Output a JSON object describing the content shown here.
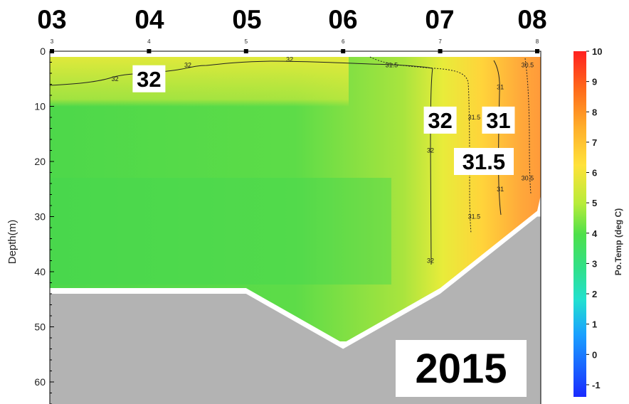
{
  "chart_data": {
    "type": "heatmap",
    "year_label": "2015",
    "station_labels": [
      "03",
      "04",
      "05",
      "06",
      "07",
      "08"
    ],
    "station_ticks": [
      "3",
      "4",
      "5",
      "6",
      "7",
      "8"
    ],
    "ylabel": "Depth(m)",
    "ylim": [
      65,
      0
    ],
    "yticks": [
      0,
      10,
      20,
      30,
      40,
      50,
      60
    ],
    "colorbar": {
      "label": "Po.Temp (deg C)",
      "range": [
        -1.4,
        10
      ],
      "ticks": [
        10,
        9,
        8,
        7,
        6,
        5,
        4,
        3,
        2,
        1,
        0,
        -1
      ]
    },
    "bottom_depth_m": [
      44,
      44,
      44,
      54,
      44,
      30
    ],
    "contour_labels": [
      {
        "text": "32",
        "station": 4,
        "depth_m": 5,
        "size": "large"
      },
      {
        "text": "32",
        "station": 7,
        "depth_m": 12.5,
        "size": "large"
      },
      {
        "text": "31",
        "station": 7.6,
        "depth_m": 12.5,
        "size": "large"
      },
      {
        "text": "31.5",
        "station": 7.45,
        "depth_m": 20,
        "size": "large"
      },
      {
        "text": "32",
        "station": 3.65,
        "depth_m": 5,
        "size": "small"
      },
      {
        "text": "32",
        "station": 4.4,
        "depth_m": 2.5,
        "size": "small"
      },
      {
        "text": "32",
        "station": 5.45,
        "depth_m": 1.5,
        "size": "small"
      },
      {
        "text": "31.5",
        "station": 6.5,
        "depth_m": 2.5,
        "size": "small"
      },
      {
        "text": "31.5",
        "station": 7.35,
        "depth_m": 12,
        "size": "small"
      },
      {
        "text": "31.5",
        "station": 7.35,
        "depth_m": 30,
        "size": "small"
      },
      {
        "text": "31",
        "station": 7.62,
        "depth_m": 6.5,
        "size": "small"
      },
      {
        "text": "31",
        "station": 7.62,
        "depth_m": 25,
        "size": "small"
      },
      {
        "text": "30.5",
        "station": 7.9,
        "depth_m": 2.5,
        "size": "small"
      },
      {
        "text": "30.5",
        "station": 7.9,
        "depth_m": 23,
        "size": "small"
      },
      {
        "text": "32",
        "station": 6.9,
        "depth_m": 18,
        "size": "small"
      },
      {
        "text": "32",
        "station": 6.9,
        "depth_m": 38,
        "size": "small"
      }
    ]
  }
}
